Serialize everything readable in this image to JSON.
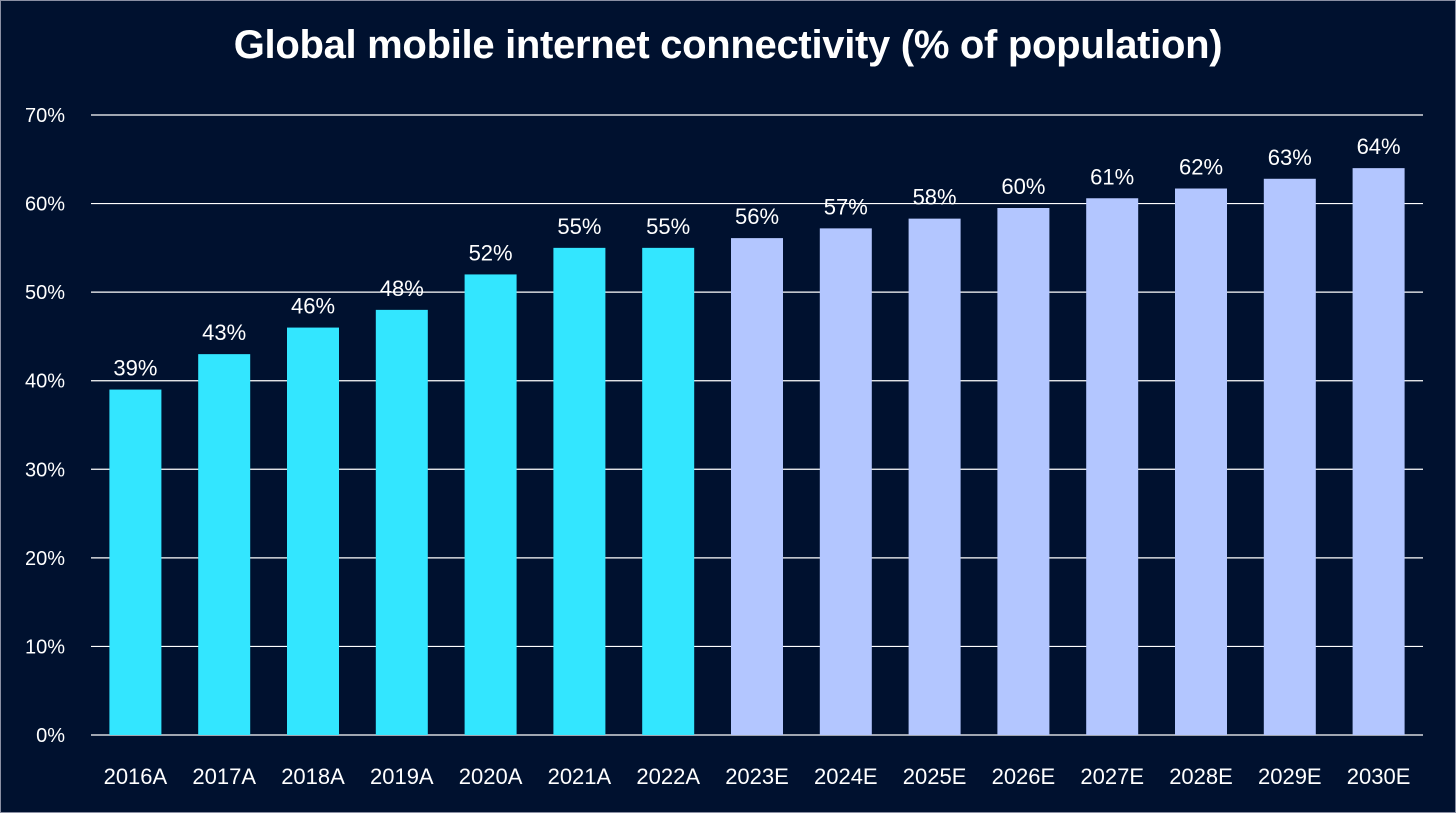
{
  "chart_data": {
    "type": "bar",
    "title": "Global mobile internet connectivity (% of population)",
    "xlabel": "",
    "ylabel": "",
    "categories": [
      "2016A",
      "2017A",
      "2018A",
      "2019A",
      "2020A",
      "2021A",
      "2022A",
      "2023E",
      "2024E",
      "2025E",
      "2026E",
      "2027E",
      "2028E",
      "2029E",
      "2030E"
    ],
    "values": [
      39,
      43,
      46,
      48,
      52,
      55,
      55,
      56.1,
      57.2,
      58.3,
      59.5,
      60.6,
      61.7,
      62.8,
      64
    ],
    "data_labels": [
      "39%",
      "43%",
      "46%",
      "48%",
      "52%",
      "55%",
      "55%",
      "56%",
      "57%",
      "58%",
      "60%",
      "61%",
      "62%",
      "63%",
      "64%"
    ],
    "y_ticks": [
      "0%",
      "10%",
      "20%",
      "30%",
      "40%",
      "50%",
      "60%",
      "70%"
    ],
    "ylim": [
      0,
      70
    ],
    "grid": true,
    "legend": "none",
    "colors": {
      "actual": "#33e6ff",
      "estimate": "#b3c6ff",
      "background": "#00112f",
      "gridline": "#ffffff",
      "text": "#ffffff"
    }
  }
}
